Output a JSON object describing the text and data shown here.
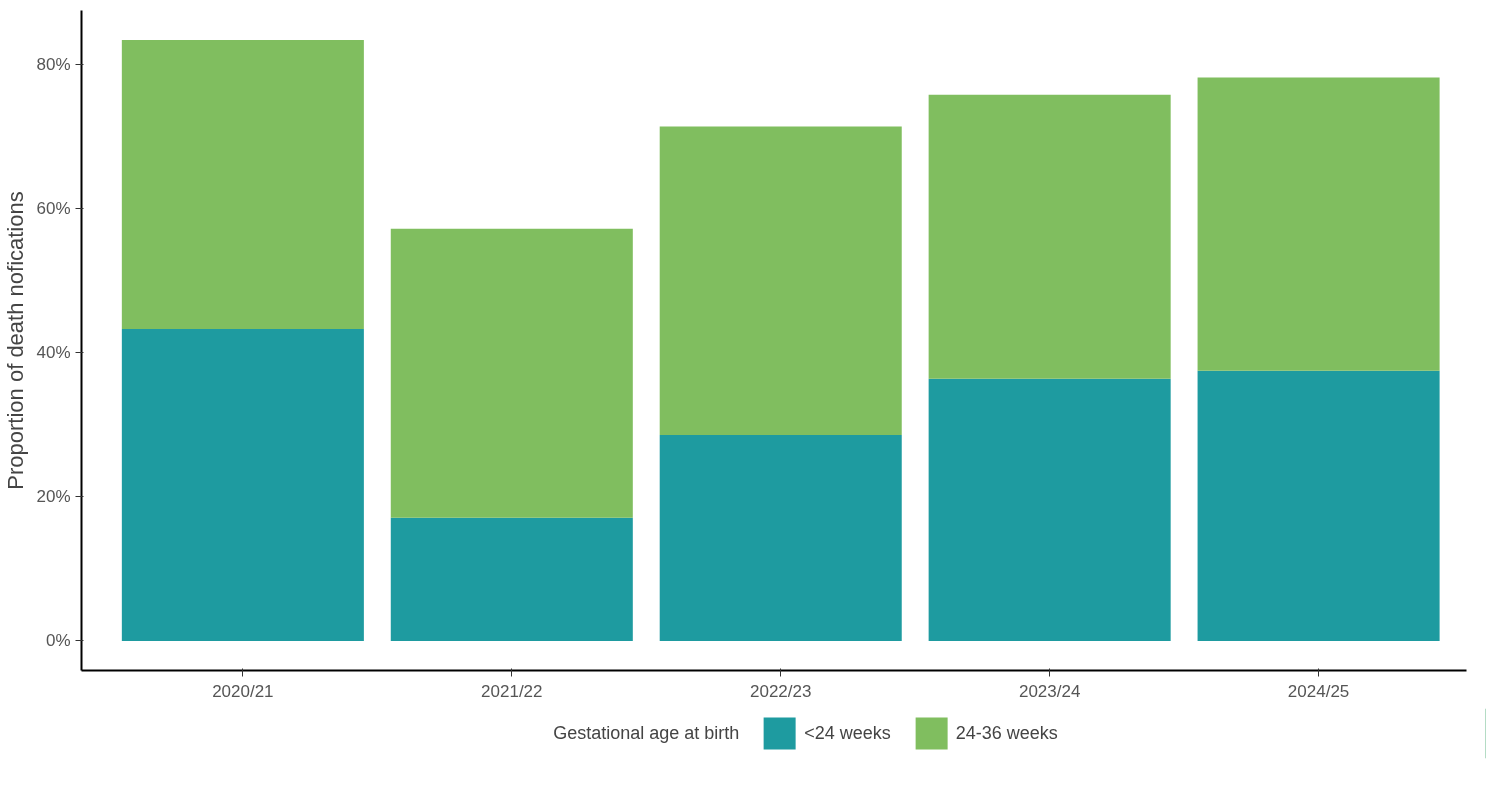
{
  "chart_data": {
    "type": "bar",
    "stacked": true,
    "ylabel": "Proportion of death nofications",
    "legend_title": "Gestational age at birth",
    "legend": "bottom",
    "grid": false,
    "categories": [
      "2020/21",
      "2021/22",
      "2022/23",
      "2023/24",
      "2024/25"
    ],
    "series": [
      {
        "name": "<24 weeks",
        "color": "#1e9ba0",
        "values": [
          43.3,
          17.1,
          28.6,
          36.4,
          37.5
        ]
      },
      {
        "name": "24-36 weeks",
        "color": "#80be5f",
        "values": [
          40.1,
          40.1,
          42.8,
          39.4,
          40.7
        ]
      }
    ],
    "ylim": [
      -4.1,
      87.5
    ],
    "yticks": [
      {
        "value": 0,
        "label": "0%"
      },
      {
        "value": 20,
        "label": "20%"
      },
      {
        "value": 40,
        "label": "40%"
      },
      {
        "value": 60,
        "label": "60%"
      },
      {
        "value": 80,
        "label": "80%"
      }
    ]
  }
}
